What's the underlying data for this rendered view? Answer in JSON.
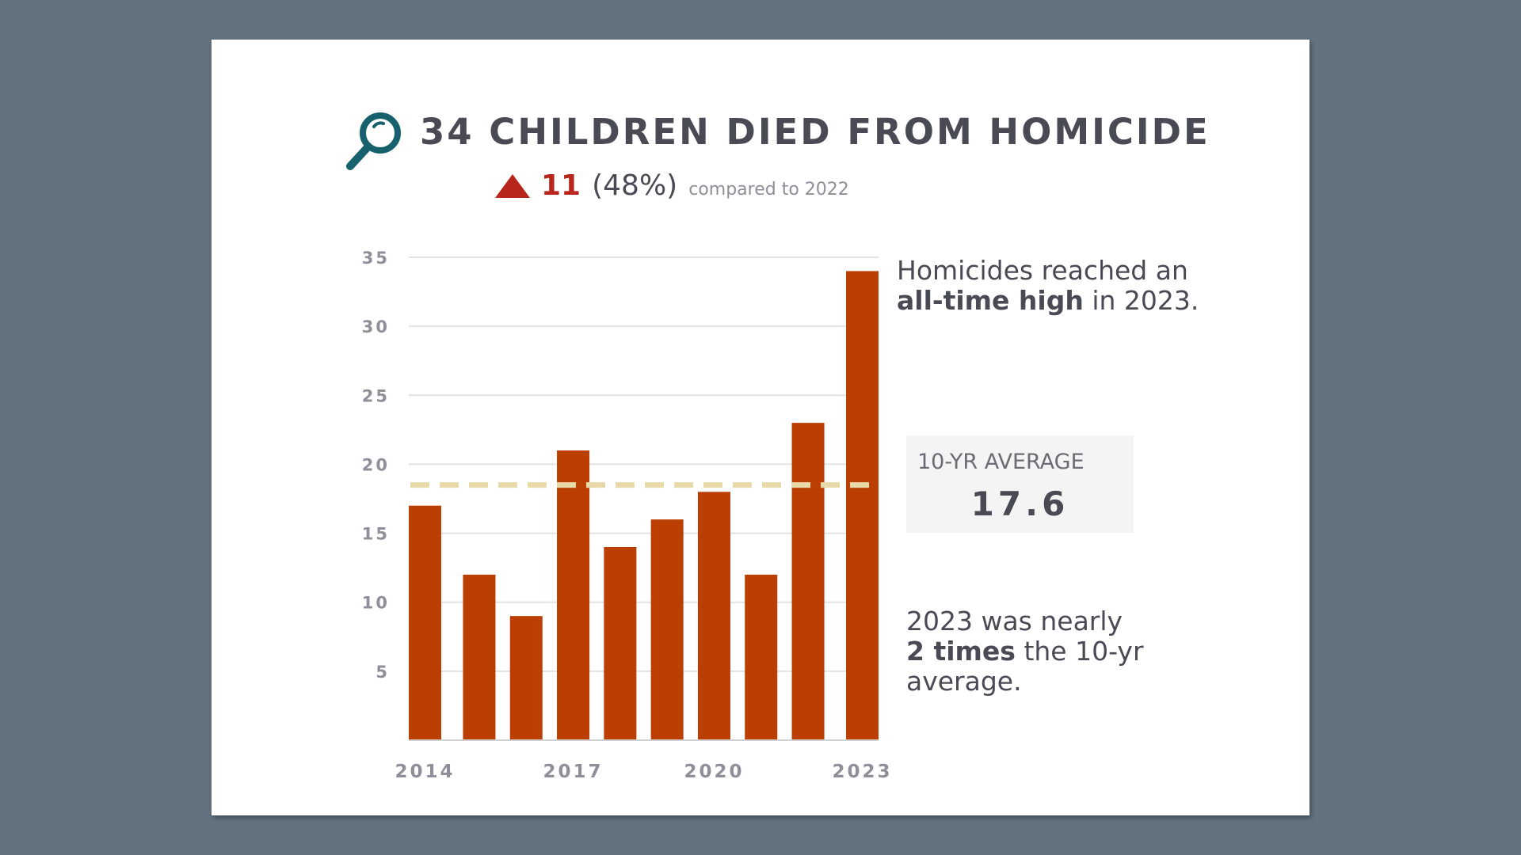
{
  "header": {
    "title": "34 CHILDREN DIED FROM HOMICIDE",
    "icon": "magnifier-icon",
    "change_value": "11",
    "change_percent": "(48%)",
    "change_text": "compared to 2022",
    "change_direction": "up"
  },
  "notes": {
    "top_line1": "Homicides reached an",
    "top_bold": "all-time high",
    "top_rest": " in 2023.",
    "bottom_line1": "2023 was nearly",
    "bottom_bold": "2 times",
    "bottom_rest": " the 10-yr",
    "bottom_line3": "average."
  },
  "average": {
    "label": "10-YR AVERAGE",
    "value": "17.6"
  },
  "colors": {
    "bar": "#bb3e03",
    "reference_line": "#e8d9a8",
    "accent_red": "#b8261b",
    "icon": "#17606e"
  },
  "chart_data": {
    "type": "bar",
    "categories": [
      "2014",
      "2015",
      "2016",
      "2017",
      "2018",
      "2019",
      "2020",
      "2021",
      "2022",
      "2023"
    ],
    "tick_labels_x": [
      "2014",
      "2017",
      "2020",
      "2023"
    ],
    "values": [
      17,
      12,
      9,
      21,
      14,
      16,
      18,
      12,
      23,
      34
    ],
    "yticks": [
      5,
      10,
      15,
      20,
      25,
      30,
      35
    ],
    "ylim": [
      0,
      35
    ],
    "grid": true,
    "reference_line": 18.5,
    "title": "",
    "xlabel": "",
    "ylabel": ""
  }
}
